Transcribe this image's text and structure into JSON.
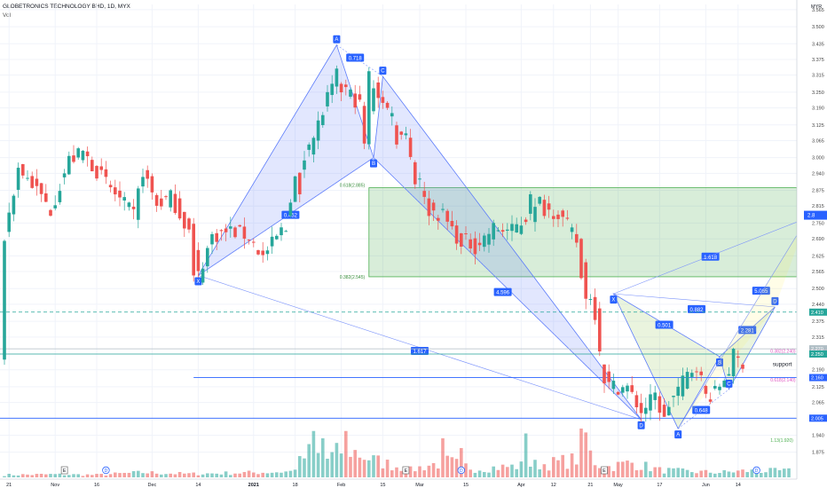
{
  "header": {
    "title": "GLOBETRONICS TECHNOLOGY BHD, 1D, MYX",
    "sub": "Vol"
  },
  "colors": {
    "up": "#26a69a",
    "down": "#ef5350",
    "pattern": "#2962ff",
    "zone": "#4caf50",
    "grid": "#f0f3fa"
  },
  "chart_data": {
    "type": "candlestick",
    "currency": "MYR",
    "ylim": [
      1.84,
      3.585
    ],
    "y_ticks": [
      "3.565",
      "3.500",
      "3.435",
      "3.375",
      "3.315",
      "3.250",
      "3.190",
      "3.125",
      "3.065",
      "3.000",
      "2.940",
      "2.875",
      "2.815",
      "2.750",
      "2.690",
      "2.625",
      "2.565",
      "2.500",
      "2.440",
      "2.375",
      "2.315",
      "2.250",
      "2.190",
      "2.125",
      "2.065",
      "2.000",
      "1.940",
      "1.875"
    ],
    "x_labels": [
      "21",
      "Nov",
      "16",
      "Dec",
      "14",
      "2021",
      "18",
      "Feb",
      "15",
      "Mar",
      "15",
      "Apr",
      "12",
      "21",
      "May",
      "17",
      "Jun",
      "14"
    ],
    "x_label_idx": [
      1,
      11,
      20,
      32,
      42,
      54,
      63,
      73,
      82,
      90,
      100,
      112,
      119,
      127,
      133,
      142,
      152,
      159
    ],
    "n_bars": 171,
    "price_path": [
      [
        0,
        2.7
      ],
      [
        3,
        2.96
      ],
      [
        6,
        2.9
      ],
      [
        10,
        2.8
      ],
      [
        14,
        2.99
      ],
      [
        17,
        3.02
      ],
      [
        20,
        2.95
      ],
      [
        24,
        2.86
      ],
      [
        28,
        2.78
      ],
      [
        30,
        2.95
      ],
      [
        33,
        2.82
      ],
      [
        36,
        2.85
      ],
      [
        40,
        2.72
      ],
      [
        42,
        2.55
      ],
      [
        45,
        2.7
      ],
      [
        49,
        2.72
      ],
      [
        53,
        2.7
      ],
      [
        56,
        2.62
      ],
      [
        60,
        2.72
      ],
      [
        63,
        2.92
      ],
      [
        67,
        3.08
      ],
      [
        70,
        3.22
      ],
      [
        71,
        3.26
      ],
      [
        74,
        3.26
      ],
      [
        77,
        3.2
      ],
      [
        78,
        3.05
      ],
      [
        80,
        3.28
      ],
      [
        84,
        3.13
      ],
      [
        87,
        3.1
      ],
      [
        89,
        2.91
      ],
      [
        92,
        2.8
      ],
      [
        95,
        2.78
      ],
      [
        98,
        2.7
      ],
      [
        102,
        2.66
      ],
      [
        106,
        2.73
      ],
      [
        110,
        2.72
      ],
      [
        113,
        2.77
      ],
      [
        116,
        2.81
      ],
      [
        120,
        2.79
      ],
      [
        123,
        2.71
      ],
      [
        124,
        2.68
      ],
      [
        126,
        2.48
      ],
      [
        128,
        2.45
      ],
      [
        129,
        2.19
      ],
      [
        131,
        2.13
      ],
      [
        135,
        2.12
      ],
      [
        138,
        2.03
      ],
      [
        141,
        2.09
      ],
      [
        143,
        2.0
      ],
      [
        144,
        2.06
      ],
      [
        148,
        2.17
      ],
      [
        150,
        2.21
      ],
      [
        152,
        2.09
      ],
      [
        154,
        2.1
      ],
      [
        157,
        2.19
      ],
      [
        158,
        2.23
      ],
      [
        160,
        2.22
      ]
    ],
    "spikes": [
      [
        41,
        2.55
      ],
      [
        61,
        2.72
      ],
      [
        64,
        2.86
      ],
      [
        66,
        3.05
      ],
      [
        70,
        3.25
      ],
      [
        72,
        3.34
      ],
      [
        79,
        3.33
      ],
      [
        83,
        3.19
      ],
      [
        84,
        3.17
      ],
      [
        85,
        3.05
      ],
      [
        90,
        2.92
      ],
      [
        91,
        2.85
      ],
      [
        99,
        2.66
      ],
      [
        114,
        2.86
      ],
      [
        116,
        2.85
      ],
      [
        125,
        2.54
      ],
      [
        127,
        2.46
      ],
      [
        128,
        2.45
      ],
      [
        128.5,
        2.38
      ],
      [
        129,
        2.26
      ],
      [
        143,
        2.01
      ],
      [
        158,
        2.27
      ]
    ],
    "volume_path": [
      [
        0,
        0.05
      ],
      [
        10,
        0.06
      ],
      [
        20,
        0.05
      ],
      [
        30,
        0.1
      ],
      [
        40,
        0.07
      ],
      [
        55,
        0.1
      ],
      [
        62,
        0.12
      ],
      [
        66,
        0.5
      ],
      [
        70,
        0.38
      ],
      [
        74,
        0.6
      ],
      [
        80,
        0.35
      ],
      [
        88,
        0.15
      ],
      [
        92,
        0.25
      ],
      [
        96,
        0.32
      ],
      [
        102,
        0.18
      ],
      [
        110,
        0.22
      ],
      [
        118,
        0.28
      ],
      [
        123,
        0.35
      ],
      [
        126,
        0.45
      ],
      [
        130,
        0.2
      ],
      [
        136,
        0.3
      ],
      [
        142,
        0.15
      ],
      [
        148,
        0.12
      ],
      [
        155,
        0.1
      ],
      [
        160,
        0.13
      ]
    ],
    "volume_spikes": [
      [
        67,
        0.95
      ],
      [
        69,
        0.8
      ],
      [
        74,
        0.95
      ],
      [
        95,
        0.8
      ],
      [
        99,
        0.6
      ],
      [
        113,
        0.9
      ],
      [
        125,
        1.0
      ],
      [
        126,
        0.92
      ],
      [
        127,
        0.55
      ]
    ],
    "price_lines": [
      {
        "name": "current-price",
        "price": 2.41,
        "label": "2.410",
        "style": "dashed",
        "color": "#26a69a"
      },
      {
        "name": "level-2270",
        "price": 2.27,
        "label": "2.270",
        "style": "solid",
        "color": "#b0bec5"
      },
      {
        "name": "level-2250",
        "price": 2.25,
        "label": "2.250",
        "style": "solid",
        "color": "#26a69a"
      },
      {
        "name": "support-line",
        "price": 2.16,
        "label": "2.160",
        "style": "solid",
        "color": "#2962ff"
      },
      {
        "name": "level-2005",
        "price": 2.005,
        "label": "2.005",
        "style": "solid",
        "color": "#2962ff"
      }
    ],
    "zone": {
      "x1": 79,
      "x2": 171,
      "top": 2.885,
      "bottom": 2.545,
      "label_top": "0.618(2.885)",
      "label_bottom": "0.382(2.545)"
    },
    "pattern1": {
      "points": {
        "X": [
          42,
          2.55
        ],
        "A": [
          72,
          3.43
        ],
        "B": [
          80,
          3.0
        ],
        "C": [
          82,
          3.31
        ],
        "D": [
          138,
          2.0
        ]
      },
      "labels": [
        "X",
        "A",
        "B",
        "C",
        "D"
      ],
      "ratios": [
        {
          "text": "0.452",
          "x": 62,
          "y": 2.78
        },
        {
          "text": "0.718",
          "x": 76,
          "y": 3.38
        },
        {
          "text": "4.596",
          "x": 108,
          "y": 2.485
        },
        {
          "text": "1.617",
          "x": 90,
          "y": 2.26
        }
      ]
    },
    "pattern2": {
      "points": {
        "X": [
          132,
          2.48
        ],
        "A": [
          146,
          1.965
        ],
        "B": [
          155,
          2.24
        ],
        "C": [
          157,
          2.115
        ],
        "D": [
          167,
          2.43
        ]
      },
      "labels": [
        "X",
        "A",
        "B",
        "C",
        "D"
      ],
      "ratios": [
        {
          "text": "0.501",
          "x": 143,
          "y": 2.36
        },
        {
          "text": "0.882",
          "x": 150,
          "y": 2.42
        },
        {
          "text": "0.648",
          "x": 151,
          "y": 2.035
        },
        {
          "text": "2.281",
          "x": 161,
          "y": 2.34
        },
        {
          "text": "5.065",
          "x": 164,
          "y": 2.49
        },
        {
          "text": "1.618",
          "x": 153,
          "y": 2.62
        }
      ]
    },
    "fib_labels": [
      {
        "text": "0.382(2.240)",
        "x": 166,
        "y": 2.255,
        "color": "#e056c2"
      },
      {
        "text": "0.618(2.140)",
        "x": 166,
        "y": 2.145,
        "color": "#e056c2"
      },
      {
        "text": "1.13(1.920)",
        "x": 166,
        "y": 1.915,
        "color": "#4caf50"
      }
    ],
    "annotations": [
      {
        "text": "support",
        "x": 166.5,
        "y": 2.205
      }
    ],
    "event_markers": [
      {
        "text": "E",
        "x": 13
      },
      {
        "text": "D",
        "x": 22
      },
      {
        "text": "E",
        "x": 87
      },
      {
        "text": "D",
        "x": 99
      },
      {
        "text": "E",
        "x": 130
      },
      {
        "text": "D",
        "x": 163
      }
    ],
    "extra_price_tag": {
      "label": "2.8",
      "price": 2.78
    }
  }
}
